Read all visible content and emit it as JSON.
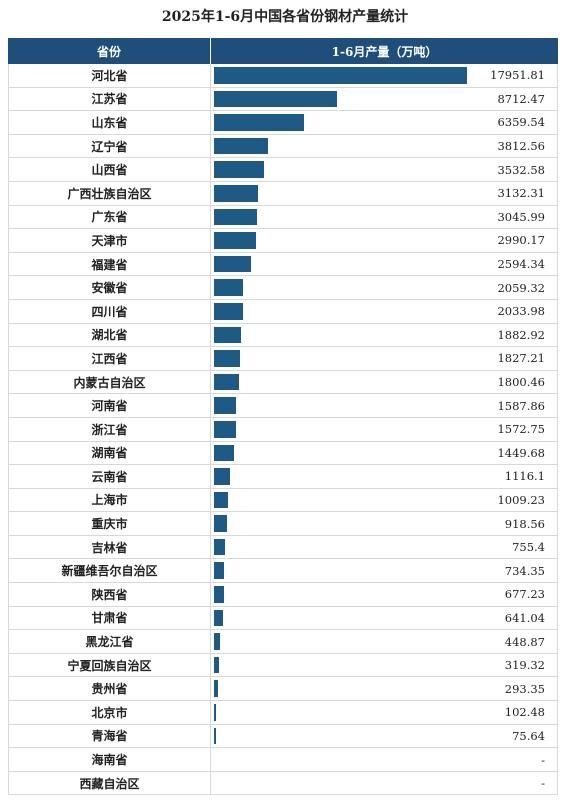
{
  "title": "2025年1-6月中国各省份钢材产量统计",
  "colors": {
    "header_bg": "#1f4e7b",
    "bar": "#1f5a85"
  },
  "chart_data": {
    "type": "bar",
    "orientation": "horizontal",
    "title": "2025年1-6月中国各省份钢材产量统计",
    "columns": [
      "省份",
      "1-6月产量（万吨）"
    ],
    "categories": [
      "河北省",
      "江苏省",
      "山东省",
      "辽宁省",
      "山西省",
      "广西壮族自治区",
      "广东省",
      "天津市",
      "福建省",
      "安徽省",
      "四川省",
      "湖北省",
      "江西省",
      "内蒙古自治区",
      "河南省",
      "浙江省",
      "湖南省",
      "云南省",
      "上海市",
      "重庆市",
      "吉林省",
      "新疆维吾尔自治区",
      "陕西省",
      "甘肃省",
      "黑龙江省",
      "宁夏回族自治区",
      "贵州省",
      "北京市",
      "青海省",
      "海南省",
      "西藏自治区"
    ],
    "values": [
      17951.81,
      8712.47,
      6359.54,
      3812.56,
      3532.58,
      3132.31,
      3045.99,
      2990.17,
      2594.34,
      2059.32,
      2033.98,
      1882.92,
      1827.21,
      1800.46,
      1587.86,
      1572.75,
      1449.68,
      1116.1,
      1009.23,
      918.56,
      755.4,
      734.35,
      677.23,
      641.04,
      448.87,
      319.32,
      293.35,
      102.48,
      75.64,
      null,
      null
    ],
    "labels": [
      "17951.81",
      "8712.47",
      "6359.54",
      "3812.56",
      "3532.58",
      "3132.31",
      "3045.99",
      "2990.17",
      "2594.34",
      "2059.32",
      "2033.98",
      "1882.92",
      "1827.21",
      "1800.46",
      "1587.86",
      "1572.75",
      "1449.68",
      "1116.1",
      "1009.23",
      "918.56",
      "755.4",
      "734.35",
      "677.23",
      "641.04",
      "448.87",
      "319.32",
      "293.35",
      "102.48",
      "75.64",
      "-",
      "-"
    ]
  }
}
